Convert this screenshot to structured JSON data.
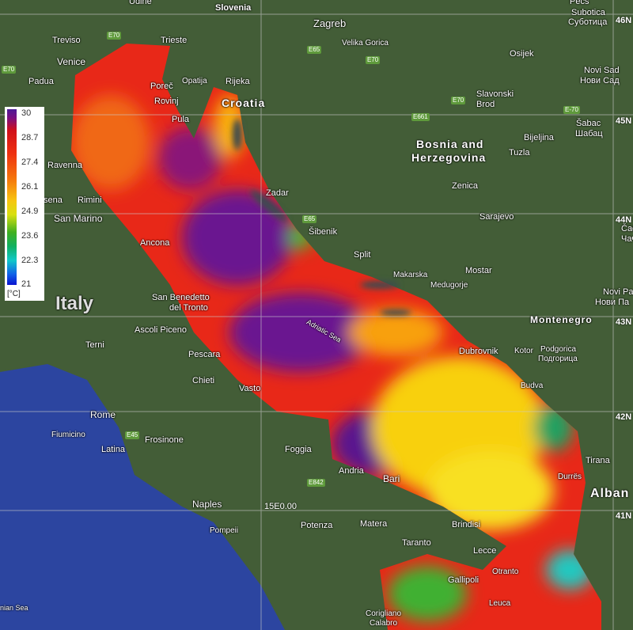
{
  "legend": {
    "ticks": [
      "30",
      "28.7",
      "27.4",
      "26.1",
      "24.9",
      "23.6",
      "22.3",
      "21"
    ],
    "unit": "[°C]",
    "colors": [
      "#4b1a96",
      "#d0101a",
      "#f5780c",
      "#f7c510",
      "#40b020",
      "#10c8c8",
      "#0a14d0"
    ]
  },
  "countries": {
    "italy": "Italy",
    "croatia": "Croatia",
    "bosnia1": "Bosnia and",
    "bosnia2": "Herzegovina",
    "montenegro": "Montenegro",
    "albania": "Alban"
  },
  "sea_label": "Adriatic Sea",
  "sea_label2": "nian Sea",
  "cities": [
    "Udine",
    "Slovenia",
    "Zagreb",
    "Pécs",
    "Subotica",
    "Суботица",
    "Treviso",
    "Trieste",
    "Velika Gorica",
    "Venice",
    "Padua",
    "Poreč",
    "Opatija",
    "Rijeka",
    "Osijek",
    "Novi Sad",
    "Нови Сад",
    "Rovinj",
    "Pula",
    "Slavonski",
    "Brod",
    "Šabac",
    "Шабац",
    "Bijeljina",
    "Tuzla",
    "Ravenna",
    "Rimini",
    "San Marino",
    "Zadar",
    "Zenica",
    "Šibenik",
    "Sarajevo",
    "Ancona",
    "Split",
    "Makarska",
    "Mostar",
    "Medugorje",
    "San Benedetto",
    "del Tronto",
    "Ascoli Piceno",
    "Terni",
    "Pescara",
    "Chieti",
    "Vasto",
    "Dubrovnik",
    "Kotor",
    "Podgorica",
    "Подгорица",
    "Budva",
    "Rome",
    "Fiumicino",
    "Frosinone",
    "Latina",
    "Foggia",
    "Andria",
    "Bari",
    "Tirana",
    "Durrës",
    "Naples",
    "Pompeii",
    "Potenza",
    "Matera",
    "Brindisi",
    "Taranto",
    "Lecce",
    "Otranto",
    "Gallipoli",
    "Leuca",
    "Corigliano",
    "Calabro",
    "sena",
    "Novi Pa",
    "Нови Па",
    "Čačak",
    "Чачак"
  ],
  "roads": [
    "E70",
    "E70",
    "E65",
    "E70",
    "E661",
    "E70",
    "E-70",
    "E65",
    "E45",
    "E842"
  ],
  "grid_labels": [
    "46N",
    "45N",
    "44N",
    "43N",
    "42N",
    "41N",
    "15E0.00"
  ]
}
